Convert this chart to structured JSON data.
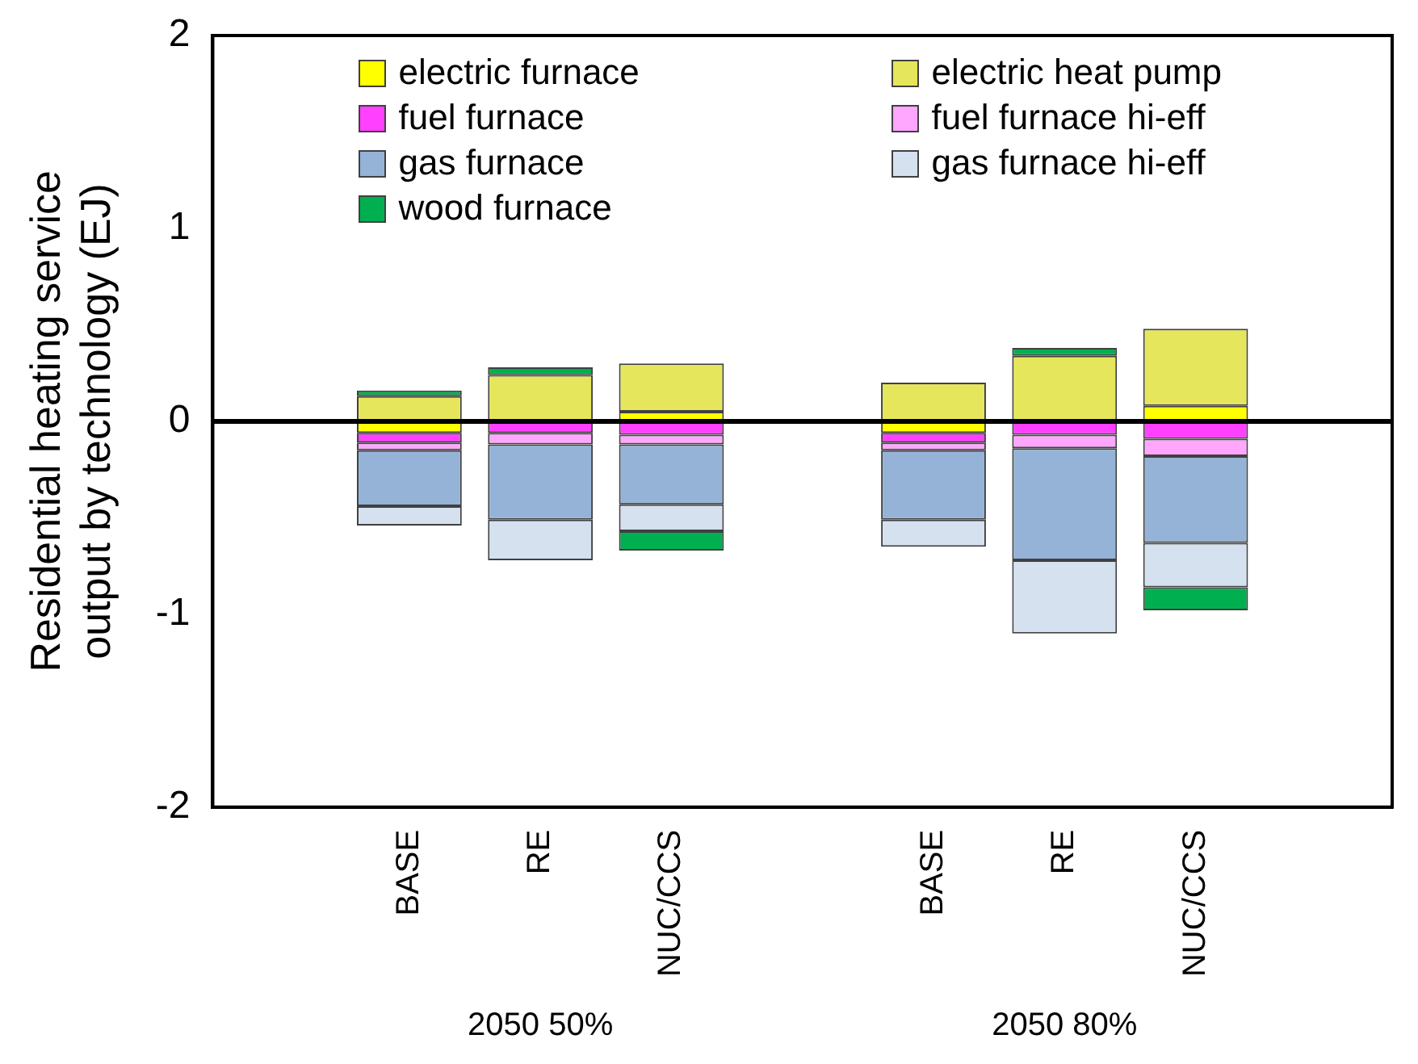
{
  "chart_data": {
    "type": "bar",
    "stacked": true,
    "ylabel": "Residential heating service\noutput by technology (EJ)",
    "categories": [
      null,
      "BASE",
      "RE",
      "NUC/CCS",
      null,
      "BASE",
      "RE",
      "NUC/CCS",
      null
    ],
    "series": [
      {
        "name": "electric furnace",
        "color": "#ffff00",
        "values": [
          null,
          -0.06,
          null,
          0.05,
          null,
          -0.06,
          null,
          0.08,
          null
        ]
      },
      {
        "name": "electric heat pump",
        "color": "#e6e65c",
        "values": [
          null,
          0.13,
          0.24,
          0.25,
          null,
          0.2,
          0.34,
          0.4,
          null
        ]
      },
      {
        "name": "fuel furnace",
        "color": "#ff40ff",
        "values": [
          null,
          -0.05,
          -0.06,
          -0.07,
          null,
          -0.05,
          -0.07,
          -0.09,
          null
        ]
      },
      {
        "name": "fuel furnace hi-eff",
        "color": "#ffa6ff",
        "values": [
          null,
          -0.04,
          -0.06,
          -0.05,
          null,
          -0.04,
          -0.07,
          -0.09,
          null
        ]
      },
      {
        "name": "gas furnace",
        "color": "#95b3d7",
        "values": [
          null,
          -0.29,
          -0.39,
          -0.31,
          null,
          -0.36,
          -0.58,
          -0.45,
          null
        ]
      },
      {
        "name": "gas furnace hi-eff",
        "color": "#d5e1ef",
        "values": [
          null,
          -0.1,
          -0.21,
          -0.14,
          null,
          -0.14,
          -0.38,
          -0.23,
          null
        ]
      },
      {
        "name": "wood furnace",
        "color": "#00b050",
        "values": [
          null,
          0.03,
          0.04,
          -0.1,
          null,
          null,
          0.04,
          -0.12,
          null
        ]
      }
    ],
    "ylim": [
      -2,
      2
    ],
    "yticks": [
      -2,
      -1,
      0,
      1,
      2
    ],
    "grid": false,
    "legend": "top",
    "ref_lines": [
      {
        "axis": "y",
        "value": 0,
        "color": "#000000"
      }
    ],
    "annotations": [
      "2050 50%",
      "2050 80%"
    ]
  }
}
